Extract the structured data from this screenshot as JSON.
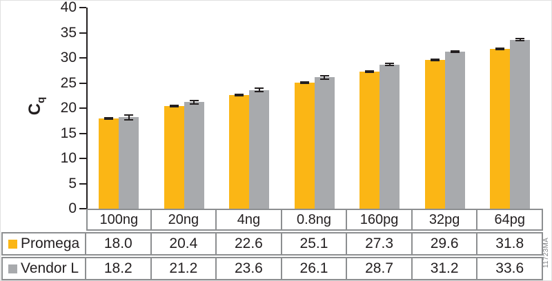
{
  "chart_data": {
    "type": "bar",
    "title": "",
    "ylabel": "Cq",
    "ylabel_main": "C",
    "ylabel_sub": "q",
    "xlabel": "",
    "ylim": [
      0,
      40
    ],
    "yticks": [
      0,
      5,
      10,
      15,
      20,
      25,
      30,
      35,
      40
    ],
    "grid": false,
    "legend_position": "table-left-column",
    "categories": [
      "100ng",
      "20ng",
      "4ng",
      "0.8ng",
      "160pg",
      "32pg",
      "64pg"
    ],
    "series": [
      {
        "name": "Promega",
        "color": "#fbb615",
        "values": [
          18.0,
          20.4,
          22.6,
          25.1,
          27.3,
          29.6,
          31.8
        ],
        "errors": [
          0.15,
          0.2,
          0.25,
          0.2,
          0.2,
          0.2,
          0.25
        ]
      },
      {
        "name": "Vendor L",
        "color": "#a8aaad",
        "values": [
          18.2,
          21.2,
          23.6,
          26.1,
          28.7,
          31.2,
          33.6
        ],
        "errors": [
          0.6,
          0.45,
          0.5,
          0.45,
          0.35,
          0.3,
          0.35
        ]
      }
    ]
  },
  "table": {
    "columns": [
      "100ng",
      "20ng",
      "4ng",
      "0.8ng",
      "160pg",
      "32pg",
      "64pg"
    ],
    "rows": [
      {
        "label": "Promega",
        "swatch_color": "#fbb615",
        "values": [
          "18.0",
          "20.4",
          "22.6",
          "25.1",
          "27.3",
          "29.6",
          "31.8"
        ]
      },
      {
        "label": "Vendor L",
        "swatch_color": "#a8aaad",
        "values": [
          "18.2",
          "21.2",
          "23.6",
          "26.1",
          "28.7",
          "31.2",
          "33.6"
        ]
      }
    ]
  },
  "watermark": "11723MA",
  "colors": {
    "axis": "#231f20",
    "table_border": "#8c8e90",
    "text": "#231f20",
    "watermark": "#808285",
    "background": "#ffffff"
  }
}
